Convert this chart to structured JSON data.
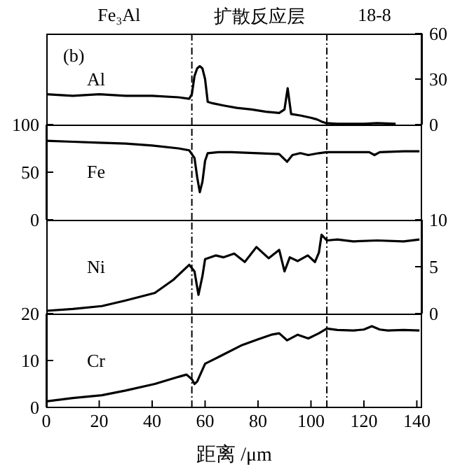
{
  "chart_data": [
    {
      "type": "line",
      "annotations": [
        "(b)",
        "Fe₃Al",
        "扩散反应层",
        "18-8"
      ],
      "series": [
        {
          "name": "Al",
          "color": "#000000",
          "x": [
            0,
            10,
            20,
            30,
            40,
            50,
            54,
            55,
            56,
            57,
            58,
            59,
            60,
            61,
            63,
            67,
            72,
            77.6,
            83,
            88,
            90,
            91.2,
            92.5,
            96,
            100,
            102.3,
            104,
            105.6,
            110,
            120,
            125,
            132
          ],
          "values": [
            20,
            19,
            20,
            19,
            19,
            18,
            17,
            20,
            32,
            37,
            38.5,
            37,
            30,
            15,
            14,
            12.6,
            11,
            10,
            8.5,
            7.7,
            10,
            24,
            7,
            6,
            4.5,
            3.4,
            2,
            1,
            0.5,
            0.5,
            1,
            0.5
          ]
        }
      ],
      "xlim": [
        0,
        142
      ],
      "ylim": [
        0,
        60
      ],
      "yticks": [
        0,
        30,
        60
      ],
      "tick_labels": "y",
      "ref_lines": [
        {
          "axis": "x",
          "value": 55,
          "line_style": "dashed"
        },
        {
          "axis": "x",
          "value": 106,
          "line_style": "dashed"
        }
      ]
    },
    {
      "type": "line",
      "series": [
        {
          "name": "Fe",
          "color": "#000000",
          "x": [
            0,
            10,
            20,
            30,
            40,
            50,
            54,
            56,
            57,
            58,
            59,
            60,
            61,
            65,
            70,
            80,
            88,
            91,
            93,
            96,
            99,
            103,
            106,
            115,
            122,
            124,
            126,
            135,
            141
          ],
          "values": [
            83,
            82,
            81,
            80,
            78,
            75,
            73,
            65,
            45,
            29,
            40,
            62,
            70,
            71,
            71,
            70,
            69,
            61,
            68,
            70,
            68,
            70,
            71,
            71,
            71,
            68,
            71,
            72,
            72
          ]
        }
      ],
      "xlim": [
        0,
        142
      ],
      "ylim": [
        0,
        100
      ],
      "yticks": [
        0,
        50,
        100
      ],
      "tick_labels": "y",
      "ref_lines": [
        {
          "axis": "x",
          "value": 55,
          "line_style": "dashed"
        },
        {
          "axis": "x",
          "value": 106,
          "line_style": "dashed"
        }
      ]
    },
    {
      "type": "line",
      "series": [
        {
          "name": "Ni",
          "color": "#000000",
          "x": [
            0,
            10,
            21,
            30,
            41,
            48,
            54,
            56,
            57.5,
            59,
            60,
            64,
            67,
            71,
            75,
            79.4,
            84,
            88,
            90,
            92,
            95,
            98.8,
            101.5,
            103,
            104,
            106,
            110,
            116,
            125,
            135,
            141
          ],
          "values": [
            0.3,
            0.5,
            0.8,
            1.4,
            2.2,
            3.6,
            5.2,
            4.5,
            2,
            4,
            5.8,
            6.2,
            6,
            6.4,
            5.5,
            7.1,
            5.9,
            6.8,
            4.5,
            6,
            5.6,
            6.2,
            5.5,
            6.5,
            8.4,
            7.8,
            7.9,
            7.7,
            7.8,
            7.7,
            7.9
          ]
        }
      ],
      "xlim": [
        0,
        142
      ],
      "ylim": [
        0,
        10
      ],
      "yticks": [
        0,
        5,
        10
      ],
      "tick_labels": "y",
      "ref_lines": [
        {
          "axis": "x",
          "value": 55,
          "line_style": "dashed"
        },
        {
          "axis": "x",
          "value": 106,
          "line_style": "dashed"
        }
      ]
    },
    {
      "type": "line",
      "xlabel": "距离 /μm",
      "series": [
        {
          "name": "Cr",
          "color": "#000000",
          "x": [
            0,
            10,
            21,
            30,
            41,
            48,
            53,
            55,
            56,
            57,
            60,
            66,
            74,
            80,
            85,
            88,
            91,
            95,
            99,
            103,
            106,
            110,
            116,
            120,
            123,
            126,
            129,
            135,
            141
          ],
          "values": [
            1.3,
            2,
            2.6,
            3.6,
            5,
            6.2,
            7,
            6,
            5,
            5.5,
            9.3,
            11,
            13.3,
            14.5,
            15.5,
            15.8,
            14.3,
            15.5,
            14.7,
            15.8,
            16.8,
            16.5,
            16.4,
            16.6,
            17.3,
            16.6,
            16.4,
            16.5,
            16.4
          ]
        }
      ],
      "xlim": [
        0,
        142
      ],
      "xticks": [
        0,
        20,
        40,
        60,
        80,
        100,
        120,
        140
      ],
      "ylim": [
        0,
        20
      ],
      "yticks": [
        0,
        10,
        20
      ],
      "ref_lines": [
        {
          "axis": "x",
          "value": 55,
          "line_style": "dashed"
        },
        {
          "axis": "x",
          "value": 106,
          "line_style": "dashed"
        }
      ]
    }
  ]
}
